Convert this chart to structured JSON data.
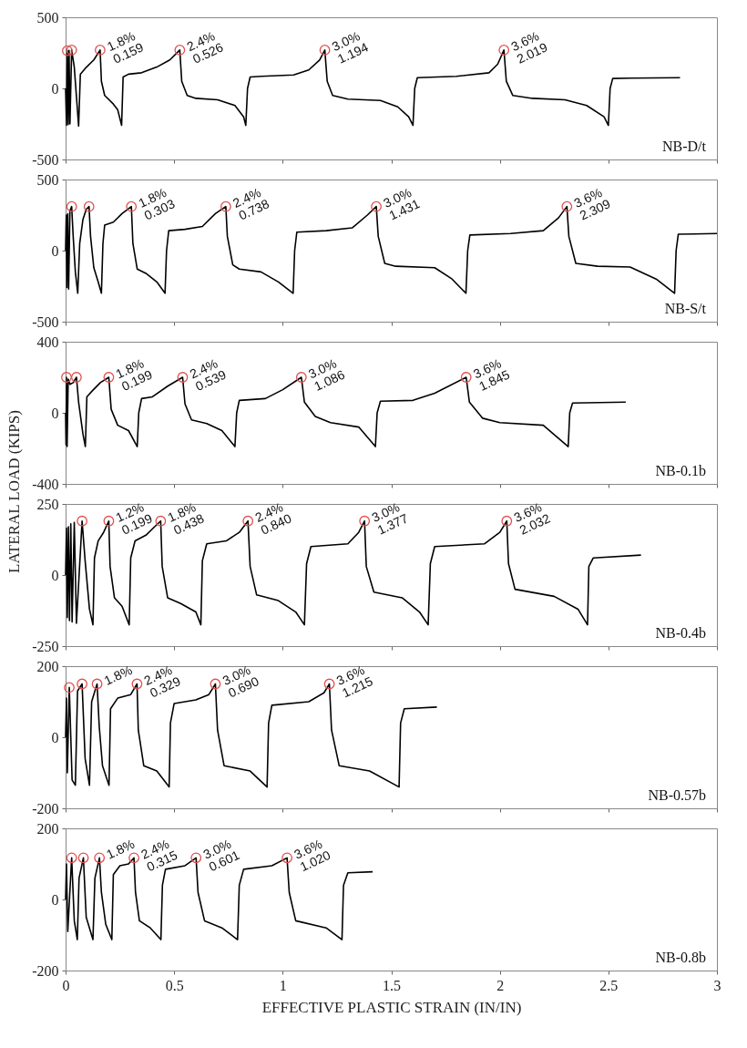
{
  "chart_data": [
    {
      "type": "line",
      "xlim": [
        0,
        3
      ],
      "ylim": [
        -500,
        500
      ],
      "xticks": [
        0,
        0.5,
        1,
        1.5,
        2,
        2.5,
        3
      ],
      "yticks": [
        -500,
        0,
        500
      ],
      "tick_labels": "y",
      "annotations": [
        {
          "text": "1.8%\n0.159",
          "x": 0.159,
          "y": 270
        },
        {
          "text": "2.4%\n0.526",
          "x": 0.526,
          "y": 270
        },
        {
          "text": "3.0%\n1.194",
          "x": 1.194,
          "y": 270
        },
        {
          "text": "3.6%\n2.019",
          "x": 2.019,
          "y": 270
        },
        "NB-D/t"
      ],
      "series": [
        {
          "type": "line",
          "color": "#000000",
          "x": [
            0,
            0.004,
            0.008,
            0.012,
            0.016,
            0.02,
            0.028,
            0.04,
            0.052,
            0.06,
            0.068,
            0.09,
            0.13,
            0.159,
            0.165,
            0.18,
            0.22,
            0.24,
            0.258,
            0.265,
            0.29,
            0.35,
            0.42,
            0.48,
            0.526,
            0.535,
            0.56,
            0.6,
            0.7,
            0.78,
            0.82,
            0.83,
            0.838,
            0.85,
            0.9,
            1.05,
            1.12,
            1.17,
            1.194,
            1.205,
            1.23,
            1.3,
            1.45,
            1.53,
            1.58,
            1.6,
            1.608,
            1.62,
            1.8,
            1.95,
            1.99,
            2.019,
            2.03,
            2.06,
            2.15,
            2.3,
            2.4,
            2.48,
            2.5,
            2.508,
            2.52,
            2.6,
            2.83
          ],
          "values": [
            0,
            -260,
            265,
            -255,
            268,
            -250,
            270,
            150,
            -100,
            -265,
            100,
            140,
            200,
            270,
            50,
            -50,
            -110,
            -150,
            -260,
            80,
            100,
            110,
            150,
            200,
            270,
            50,
            -50,
            -70,
            -80,
            -120,
            -200,
            -260,
            0,
            80,
            85,
            95,
            130,
            200,
            270,
            50,
            -50,
            -75,
            -85,
            -130,
            -200,
            -260,
            0,
            75,
            85,
            110,
            170,
            270,
            50,
            -50,
            -70,
            -80,
            -120,
            -200,
            -260,
            0,
            70,
            72,
            75
          ]
        },
        {
          "type": "scatter",
          "marker": "circle",
          "color": "#e05050",
          "x": [
            0.008,
            0.028,
            0.159,
            0.526,
            1.194,
            2.019
          ],
          "values": [
            265,
            270,
            270,
            270,
            270,
            270
          ]
        }
      ]
    },
    {
      "type": "line",
      "xlim": [
        0,
        3
      ],
      "ylim": [
        -500,
        500
      ],
      "xticks": [
        0,
        0.5,
        1,
        1.5,
        2,
        2.5,
        3
      ],
      "yticks": [
        -500,
        0,
        500
      ],
      "tick_labels": "y",
      "annotations": [
        {
          "text": "1.8%\n0.303",
          "x": 0.303,
          "y": 310
        },
        {
          "text": "2.4%\n0.738",
          "x": 0.738,
          "y": 310
        },
        {
          "text": "3.0%\n1.431",
          "x": 1.431,
          "y": 310
        },
        {
          "text": "3.6%\n2.309",
          "x": 2.309,
          "y": 310
        },
        "NB-S/t"
      ],
      "series": [
        {
          "type": "line",
          "color": "#000000",
          "x": [
            0,
            0.003,
            0.006,
            0.01,
            0.014,
            0.02,
            0.028,
            0.035,
            0.045,
            0.056,
            0.065,
            0.08,
            0.095,
            0.108,
            0.115,
            0.13,
            0.15,
            0.165,
            0.172,
            0.18,
            0.22,
            0.26,
            0.303,
            0.31,
            0.33,
            0.37,
            0.42,
            0.458,
            0.465,
            0.475,
            0.55,
            0.63,
            0.69,
            0.738,
            0.745,
            0.77,
            0.8,
            0.9,
            0.98,
            1.048,
            1.055,
            1.065,
            1.2,
            1.32,
            1.39,
            1.431,
            1.44,
            1.47,
            1.52,
            1.7,
            1.78,
            1.844,
            1.852,
            1.862,
            2.05,
            2.2,
            2.27,
            2.309,
            2.318,
            2.35,
            2.45,
            2.6,
            2.72,
            2.805,
            2.812,
            2.822,
            3.0
          ],
          "values": [
            0,
            250,
            -260,
            260,
            -270,
            280,
            310,
            100,
            -150,
            -300,
            50,
            220,
            290,
            310,
            100,
            -120,
            -220,
            -300,
            50,
            180,
            200,
            260,
            310,
            50,
            -130,
            -160,
            -220,
            -300,
            0,
            140,
            150,
            170,
            260,
            310,
            100,
            -100,
            -130,
            -150,
            -220,
            -300,
            0,
            130,
            140,
            160,
            250,
            310,
            100,
            -90,
            -110,
            -120,
            -200,
            -300,
            0,
            110,
            120,
            140,
            230,
            310,
            100,
            -90,
            -110,
            -115,
            -200,
            -300,
            0,
            115,
            120
          ]
        },
        {
          "type": "scatter",
          "marker": "circle",
          "color": "#e05050",
          "x": [
            0.028,
            0.108,
            0.303,
            0.738,
            1.431,
            2.309
          ],
          "values": [
            310,
            310,
            310,
            310,
            310,
            310
          ]
        }
      ]
    },
    {
      "type": "line",
      "xlim": [
        0,
        3
      ],
      "ylim": [
        -400,
        400
      ],
      "xticks": [
        0,
        0.5,
        1,
        1.5,
        2,
        2.5,
        3
      ],
      "yticks": [
        -400,
        0,
        400
      ],
      "tick_labels": "y",
      "ylabel": "LATERAL LOAD (KIPS)",
      "annotations": [
        {
          "text": "1.8%\n0.199",
          "x": 0.199,
          "y": 200
        },
        {
          "text": "2.4%\n0.539",
          "x": 0.539,
          "y": 200
        },
        {
          "text": "3.0%\n1.086",
          "x": 1.086,
          "y": 200
        },
        {
          "text": "3.6%\n1.845",
          "x": 1.845,
          "y": 200
        },
        "NB-0.1b"
      ],
      "series": [
        {
          "type": "line",
          "color": "#000000",
          "x": [
            0,
            0.002,
            0.004,
            0.007,
            0.012,
            0.02,
            0.035,
            0.05,
            0.06,
            0.08,
            0.091,
            0.098,
            0.12,
            0.16,
            0.199,
            0.21,
            0.24,
            0.29,
            0.33,
            0.337,
            0.35,
            0.4,
            0.47,
            0.539,
            0.55,
            0.58,
            0.65,
            0.72,
            0.78,
            0.788,
            0.8,
            0.92,
            1.0,
            1.086,
            1.1,
            1.15,
            1.22,
            1.35,
            1.427,
            1.435,
            1.45,
            1.6,
            1.7,
            1.845,
            1.86,
            1.92,
            2.0,
            2.2,
            2.315,
            2.322,
            2.335,
            2.58
          ],
          "values": [
            0,
            -180,
            200,
            -190,
            190,
            160,
            170,
            200,
            60,
            -120,
            -190,
            90,
            120,
            170,
            200,
            20,
            -70,
            -100,
            -190,
            0,
            80,
            90,
            150,
            200,
            50,
            -40,
            -60,
            -100,
            -190,
            0,
            70,
            80,
            130,
            200,
            60,
            -20,
            -55,
            -80,
            -190,
            0,
            65,
            70,
            110,
            200,
            60,
            -30,
            -55,
            -70,
            -190,
            0,
            55,
            60
          ]
        },
        {
          "type": "scatter",
          "marker": "circle",
          "color": "#e05050",
          "x": [
            0.004,
            0.05,
            0.199,
            0.539,
            1.086,
            1.845
          ],
          "values": [
            200,
            200,
            200,
            200,
            200,
            200
          ]
        }
      ]
    },
    {
      "type": "line",
      "xlim": [
        0,
        3
      ],
      "ylim": [
        -250,
        250
      ],
      "xticks": [
        0,
        0.5,
        1,
        1.5,
        2,
        2.5,
        3
      ],
      "yticks": [
        -250,
        0,
        250
      ],
      "tick_labels": "y",
      "annotations": [
        {
          "text": "1.2%\n0.199",
          "x": 0.199,
          "y": 190
        },
        {
          "text": "1.8%\n0.438",
          "x": 0.438,
          "y": 190
        },
        {
          "text": "2.4%\n0.840",
          "x": 0.84,
          "y": 190
        },
        {
          "text": "3.0%\n1.377",
          "x": 1.377,
          "y": 190
        },
        {
          "text": "3.6%\n2.032",
          "x": 2.032,
          "y": 190
        },
        "NB-0.4b"
      ],
      "series": [
        {
          "type": "line",
          "color": "#000000",
          "x": [
            0,
            0.004,
            0.008,
            0.013,
            0.018,
            0.024,
            0.03,
            0.04,
            0.05,
            0.076,
            0.09,
            0.11,
            0.126,
            0.133,
            0.15,
            0.175,
            0.199,
            0.205,
            0.225,
            0.26,
            0.293,
            0.3,
            0.32,
            0.37,
            0.41,
            0.438,
            0.445,
            0.47,
            0.53,
            0.6,
            0.623,
            0.63,
            0.65,
            0.74,
            0.8,
            0.84,
            0.85,
            0.88,
            0.98,
            1.06,
            1.1,
            1.11,
            1.13,
            1.3,
            1.35,
            1.377,
            1.385,
            1.42,
            1.55,
            1.63,
            1.67,
            1.68,
            1.7,
            1.93,
            2.0,
            2.032,
            2.04,
            2.07,
            2.25,
            2.36,
            2.404,
            2.41,
            2.43,
            2.65
          ],
          "values": [
            0,
            165,
            -150,
            170,
            -160,
            180,
            -165,
            185,
            -170,
            190,
            50,
            -120,
            -175,
            60,
            120,
            150,
            190,
            30,
            -80,
            -110,
            -175,
            60,
            120,
            140,
            170,
            190,
            30,
            -80,
            -100,
            -130,
            -175,
            50,
            110,
            120,
            150,
            190,
            30,
            -70,
            -90,
            -130,
            -175,
            40,
            100,
            110,
            150,
            190,
            30,
            -60,
            -80,
            -130,
            -175,
            40,
            100,
            110,
            150,
            190,
            40,
            -50,
            -75,
            -120,
            -175,
            30,
            60,
            70
          ]
        },
        {
          "type": "scatter",
          "marker": "circle",
          "color": "#e05050",
          "x": [
            0.076,
            0.199,
            0.438,
            0.84,
            1.377,
            2.032
          ],
          "values": [
            190,
            190,
            190,
            190,
            190,
            190
          ]
        }
      ]
    },
    {
      "type": "line",
      "xlim": [
        0,
        3
      ],
      "ylim": [
        -200,
        200
      ],
      "xticks": [
        0,
        0.5,
        1,
        1.5,
        2,
        2.5,
        3
      ],
      "yticks": [
        -200,
        0,
        200
      ],
      "tick_labels": "y",
      "annotations": [
        {
          "text": "1.8%",
          "x": 0.145,
          "y": 150
        },
        {
          "text": "2.4%\n0.329",
          "x": 0.329,
          "y": 150
        },
        {
          "text": "3.0%\n0.690",
          "x": 0.69,
          "y": 150
        },
        {
          "text": "3.6%\n1.215",
          "x": 1.215,
          "y": 150
        },
        "NB-0.57b"
      ],
      "series": [
        {
          "type": "line",
          "color": "#000000",
          "x": [
            0,
            0.004,
            0.008,
            0.017,
            0.03,
            0.045,
            0.055,
            0.076,
            0.09,
            0.11,
            0.12,
            0.145,
            0.155,
            0.17,
            0.2,
            0.207,
            0.24,
            0.3,
            0.329,
            0.335,
            0.36,
            0.42,
            0.477,
            0.483,
            0.5,
            0.6,
            0.66,
            0.69,
            0.7,
            0.73,
            0.85,
            0.928,
            0.935,
            0.95,
            1.12,
            1.19,
            1.215,
            1.225,
            1.26,
            1.4,
            1.536,
            1.543,
            1.56,
            1.71
          ],
          "values": [
            0,
            110,
            -100,
            140,
            -120,
            -135,
            130,
            150,
            -60,
            -135,
            100,
            150,
            30,
            -80,
            -135,
            80,
            110,
            120,
            150,
            20,
            -80,
            -95,
            -140,
            40,
            95,
            105,
            120,
            150,
            20,
            -80,
            -95,
            -140,
            40,
            90,
            100,
            125,
            150,
            20,
            -80,
            -95,
            -140,
            40,
            80,
            85
          ]
        },
        {
          "type": "scatter",
          "marker": "circle",
          "color": "#e05050",
          "x": [
            0.017,
            0.076,
            0.145,
            0.329,
            0.69,
            1.215
          ],
          "values": [
            140,
            150,
            150,
            150,
            150,
            150
          ]
        }
      ]
    },
    {
      "type": "line",
      "xlim": [
        0,
        3
      ],
      "ylim": [
        -200,
        200
      ],
      "xticks": [
        0,
        0.5,
        1,
        1.5,
        2,
        2.5,
        3
      ],
      "yticks": [
        -200,
        0,
        200
      ],
      "xlabel": "EFFECTIVE PLASTIC STRAIN (IN/IN)",
      "annotations": [
        {
          "text": "1.8%",
          "x": 0.156,
          "y": 117
        },
        {
          "text": "2.4%\n0.315",
          "x": 0.315,
          "y": 117
        },
        {
          "text": "3.0%\n0.601",
          "x": 0.601,
          "y": 117
        },
        {
          "text": "3.6%\n1.020",
          "x": 1.02,
          "y": 117
        },
        "NB-0.8b"
      ],
      "series": [
        {
          "type": "line",
          "color": "#000000",
          "x": [
            0,
            0.004,
            0.01,
            0.028,
            0.04,
            0.054,
            0.062,
            0.082,
            0.095,
            0.126,
            0.135,
            0.156,
            0.165,
            0.185,
            0.213,
            0.22,
            0.25,
            0.29,
            0.315,
            0.322,
            0.34,
            0.39,
            0.439,
            0.446,
            0.46,
            0.55,
            0.601,
            0.61,
            0.64,
            0.72,
            0.792,
            0.8,
            0.82,
            0.95,
            1.02,
            1.03,
            1.06,
            1.2,
            1.273,
            1.28,
            1.3,
            1.414
          ],
          "values": [
            0,
            100,
            -90,
            117,
            -60,
            -113,
            60,
            117,
            -50,
            -113,
            60,
            117,
            20,
            -70,
            -113,
            70,
            95,
            100,
            117,
            20,
            -60,
            -80,
            -113,
            40,
            85,
            95,
            117,
            20,
            -60,
            -80,
            -113,
            40,
            85,
            95,
            117,
            20,
            -60,
            -80,
            -113,
            40,
            75,
            78
          ]
        },
        {
          "type": "scatter",
          "marker": "circle",
          "color": "#e05050",
          "x": [
            0.028,
            0.082,
            0.156,
            0.315,
            0.601,
            1.02
          ],
          "values": [
            117,
            117,
            117,
            117,
            117,
            117
          ]
        }
      ]
    }
  ]
}
